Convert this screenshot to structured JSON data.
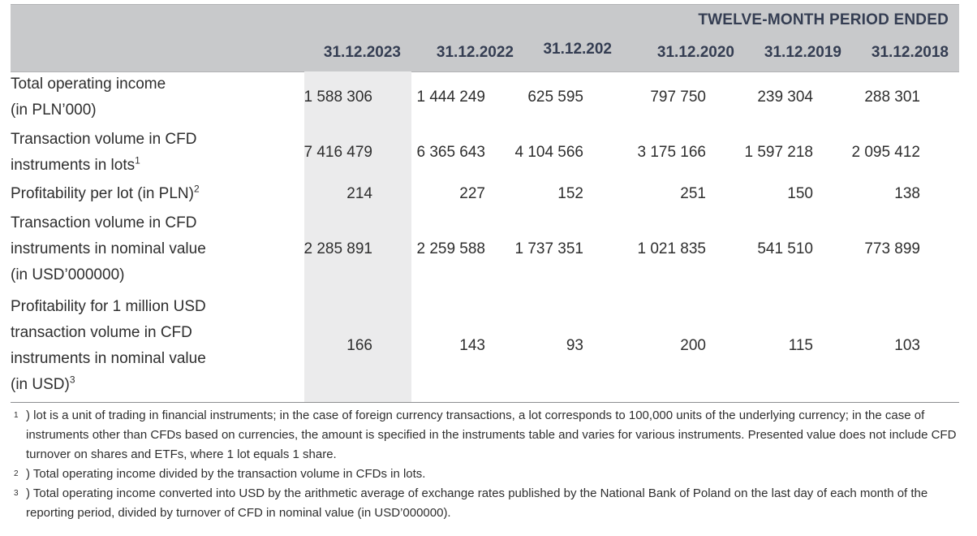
{
  "table": {
    "period_title": "TWELVE-MONTH PERIOD ENDED",
    "columns": [
      "31.12.2023",
      "31.12.2022",
      "31.12.202",
      "31.12.2020",
      "31.12.2019",
      "31.12.2018"
    ],
    "rows": [
      {
        "label_lines": [
          "Total operating income",
          "(in PLN’000)"
        ],
        "sup": "",
        "values": [
          "1 588 306",
          "1 444 249",
          "625 595",
          "797 750",
          "239 304",
          "288 301"
        ]
      },
      {
        "label_lines": [
          "Transaction volume in CFD",
          "instruments in lots"
        ],
        "sup": "1",
        "values": [
          "7 416 479",
          "6 365 643",
          "4 104 566",
          "3 175 166",
          "1 597 218",
          "2 095 412"
        ]
      },
      {
        "label_lines": [
          "Profitability per lot (in PLN)"
        ],
        "sup": "2",
        "values": [
          "214",
          "227",
          "152",
          "251",
          "150",
          "138"
        ]
      },
      {
        "label_lines": [
          "Transaction volume in CFD",
          "instruments in nominal value",
          "(in USD’000000)"
        ],
        "sup": "",
        "values": [
          "2 285 891",
          "2 259 588",
          "1 737 351",
          "1 021 835",
          "541 510",
          "773 899"
        ]
      },
      {
        "label_lines": [
          "Profitability for 1 million USD",
          "transaction volume in CFD",
          "instruments in nominal value",
          "(in USD)"
        ],
        "sup": "3",
        "values": [
          "166",
          "143",
          "93",
          "200",
          "115",
          "103"
        ]
      }
    ]
  },
  "footnotes": [
    {
      "mark": "1",
      "text": ") lot is a unit of trading in financial instruments; in the case of foreign currency transactions, a lot corresponds to 100,000 units of the underlying currency; in the case of instruments other than CFDs based on currencies, the amount is specified in the instruments table and varies for various instruments. Presented value does not include CFD turnover on shares and ETFs, where 1 lot equals 1 share."
    },
    {
      "mark": "2",
      "text": ") Total operating income divided by the transaction volume in CFDs in lots."
    },
    {
      "mark": "3",
      "text": ") Total operating income converted into USD by the arithmetic average of exchange rates published by the National Bank of Poland on the last day of each month of the reporting period, divided by turnover of CFD in nominal value (in USD’000000)."
    }
  ]
}
